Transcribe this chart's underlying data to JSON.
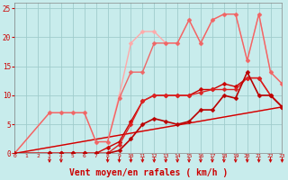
{
  "xlabel": "Vent moyen/en rafales ( km/h )",
  "xlim": [
    0,
    23
  ],
  "ylim": [
    0,
    26
  ],
  "xticks": [
    0,
    1,
    2,
    3,
    4,
    5,
    6,
    7,
    8,
    9,
    10,
    11,
    12,
    13,
    14,
    15,
    16,
    17,
    18,
    19,
    20,
    21,
    22,
    23
  ],
  "yticks": [
    0,
    5,
    10,
    15,
    20,
    25
  ],
  "bg_color": "#c8ecec",
  "grid_color": "#a0cccc",
  "series": [
    {
      "x": [
        0,
        23
      ],
      "y": [
        0,
        8
      ],
      "color": "#ffaaaa",
      "lw": 1.0,
      "marker": null
    },
    {
      "x": [
        0,
        3,
        4,
        5,
        6,
        7,
        8,
        9,
        10,
        11,
        12,
        13,
        14,
        15,
        16,
        17,
        18,
        19,
        20,
        21,
        22,
        23
      ],
      "y": [
        0,
        7,
        7,
        7,
        7,
        2,
        2,
        10,
        19,
        21,
        21,
        19,
        19,
        23,
        19,
        23,
        24,
        24,
        16,
        24,
        14,
        12
      ],
      "color": "#ffaaaa",
      "lw": 1.0,
      "marker": "D",
      "ms": 2.5
    },
    {
      "x": [
        0,
        23
      ],
      "y": [
        0,
        8
      ],
      "color": "#cc0000",
      "lw": 1.0,
      "marker": null
    },
    {
      "x": [
        0,
        3,
        4,
        5,
        6,
        7,
        8,
        9,
        10,
        11,
        12,
        13,
        14,
        15,
        16,
        17,
        18,
        19,
        20,
        21,
        22,
        23
      ],
      "y": [
        0,
        0,
        0,
        0,
        0,
        0,
        1,
        2,
        5.5,
        9,
        10,
        10,
        10,
        10,
        11,
        11,
        12,
        11.5,
        13,
        13,
        10,
        8
      ],
      "color": "#cc0000",
      "lw": 1.0,
      "marker": "D",
      "ms": 2.5
    },
    {
      "x": [
        0,
        3,
        4,
        5,
        6,
        7,
        8,
        9,
        10,
        11,
        12,
        13,
        14,
        15,
        16,
        17,
        18,
        19,
        20,
        21,
        22,
        23
      ],
      "y": [
        0,
        0,
        0,
        0,
        0,
        0,
        0,
        1.5,
        5,
        9,
        10,
        10,
        10,
        10,
        10.5,
        11,
        11,
        11,
        13,
        13,
        10,
        8
      ],
      "color": "#dd2222",
      "lw": 1.0,
      "marker": "D",
      "ms": 2.5
    },
    {
      "x": [
        0,
        3,
        4,
        5,
        6,
        7,
        8,
        9,
        10,
        11,
        12,
        13,
        14,
        15,
        16,
        17,
        18,
        19,
        20,
        21,
        22,
        23
      ],
      "y": [
        0,
        7,
        7,
        7,
        7,
        2,
        2,
        9.5,
        14,
        14,
        19,
        19,
        19,
        23,
        19,
        23,
        24,
        24,
        16,
        24,
        14,
        12
      ],
      "color": "#ee6666",
      "lw": 1.0,
      "marker": "D",
      "ms": 2.5
    },
    {
      "x": [
        0,
        3,
        4,
        5,
        6,
        7,
        8,
        9,
        10,
        11,
        12,
        13,
        14,
        15,
        16,
        17,
        18,
        19,
        20,
        21,
        22,
        23
      ],
      "y": [
        0,
        0,
        0,
        0,
        0,
        0,
        0,
        0.5,
        2.5,
        5,
        6,
        5.5,
        5,
        5.5,
        7.5,
        7.5,
        10,
        9.5,
        14,
        10,
        10,
        8
      ],
      "color": "#bb0000",
      "lw": 1.2,
      "marker": "D",
      "ms": 2.5
    }
  ],
  "arrows_x": [
    3,
    4,
    8,
    9,
    10,
    11,
    12,
    13,
    14,
    15,
    16,
    17,
    18,
    19,
    20,
    21,
    22,
    23
  ],
  "xlabel_color": "#cc0000",
  "tick_color": "#cc0000"
}
